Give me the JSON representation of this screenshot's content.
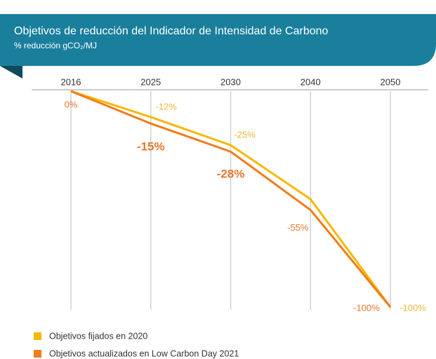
{
  "chart_data": {
    "type": "line",
    "title": "Objetivos de reducción del Indicador de Intensidad de Carbono",
    "subtitle": "% reducción gCO₂/MJ",
    "categories": [
      "2016",
      "2025",
      "2030",
      "2040",
      "2050"
    ],
    "ylim": [
      -100,
      0
    ],
    "series": [
      {
        "name": "Objetivos fijados en 2020",
        "color": "#f5b800",
        "values": [
          0,
          -12,
          -25,
          -50,
          -100
        ],
        "value_labels": [
          null,
          "-12%",
          "-25%",
          null,
          "-100%"
        ]
      },
      {
        "name": "Objetivos actualizados en Low Carbon Day 2021",
        "color": "#f07d1a",
        "values": [
          0,
          -15,
          -28,
          -55,
          -100
        ],
        "value_labels": [
          "0%",
          "-15%",
          "-28%",
          "-55%",
          "-100%"
        ]
      }
    ]
  }
}
